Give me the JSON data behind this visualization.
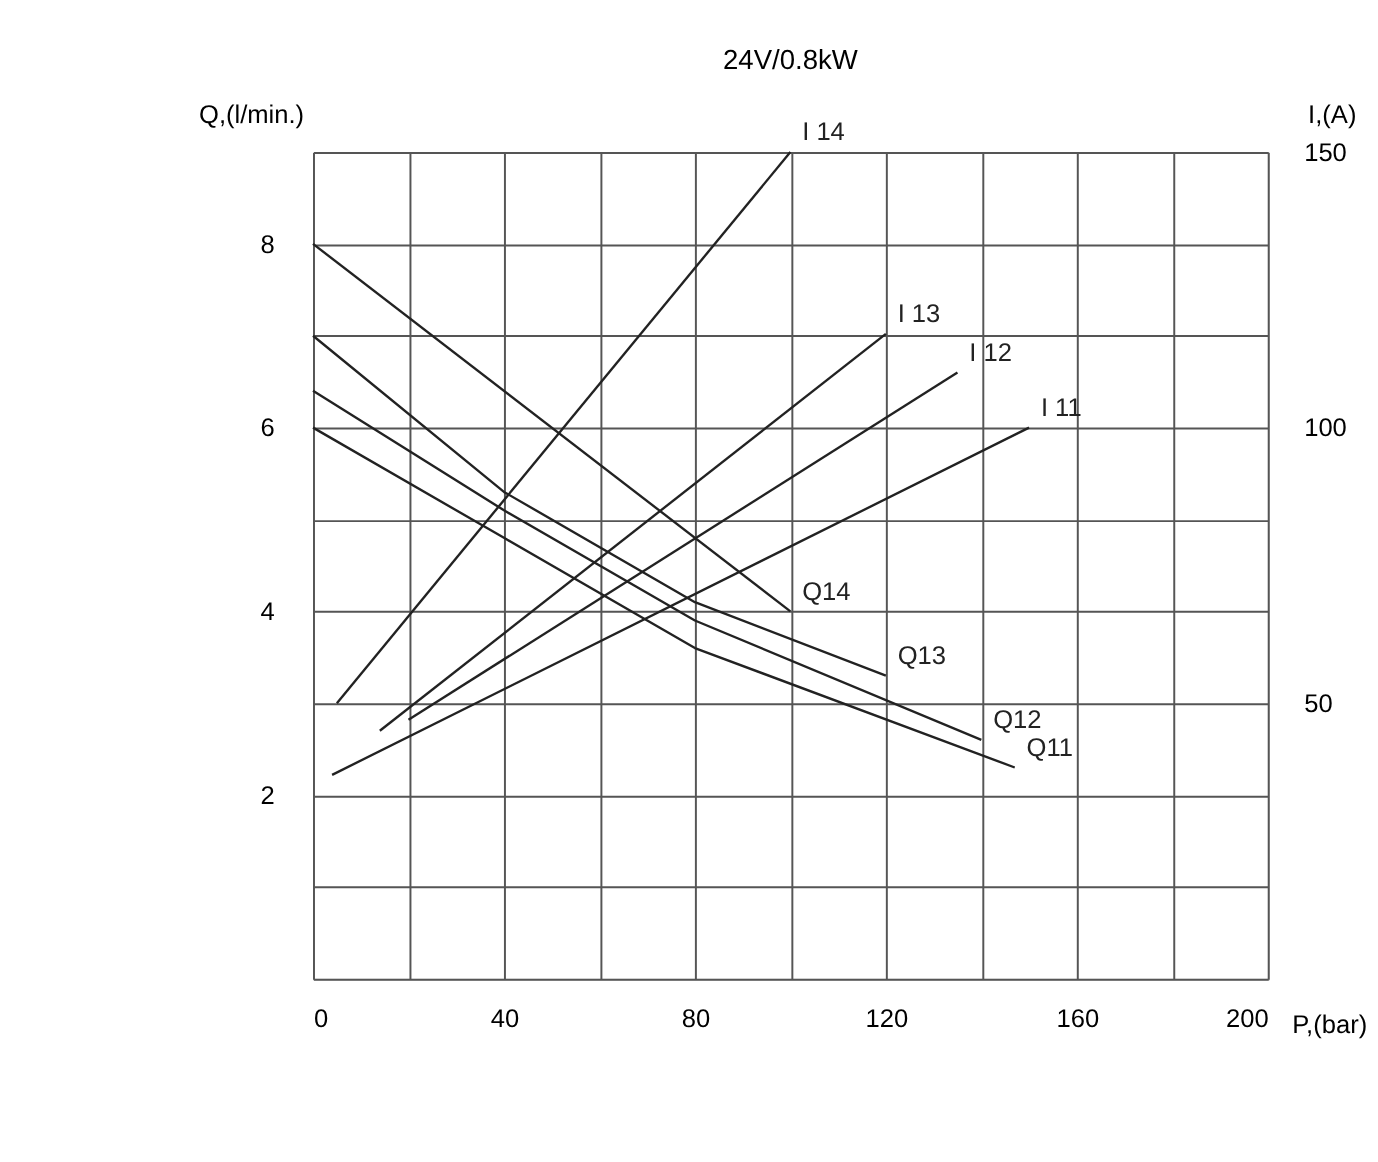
{
  "chart_data": {
    "type": "line",
    "title": "24V/0.8kW",
    "xlabel": "P,(bar)",
    "ylabel": "Q,(l/min.)",
    "y2label": "I,(A)",
    "xlim": [
      0,
      200
    ],
    "xticks": [
      0,
      {
        "value": 20,
        "label": null
      },
      40,
      {
        "value": 60,
        "label": null
      },
      80,
      {
        "value": 100,
        "label": null
      },
      120,
      {
        "value": 140,
        "label": null
      },
      160,
      {
        "value": 180,
        "label": null
      },
      200
    ],
    "ylim": [
      0,
      9
    ],
    "yticks": [
      {
        "value": 0,
        "label": null
      },
      {
        "value": 1,
        "label": null
      },
      2,
      {
        "value": 3,
        "label": null
      },
      4,
      {
        "value": 5,
        "label": null
      },
      6,
      {
        "value": 7,
        "label": null
      },
      8,
      {
        "value": 9,
        "label": null
      }
    ],
    "y2lim": [
      0,
      150
    ],
    "y2ticks": [
      50,
      100,
      150
    ],
    "grid": true,
    "legend": false,
    "marker": "none",
    "line_style": "solid",
    "series": [
      {
        "name": "I 14",
        "axis": "y2",
        "color": "#222222",
        "x": [
          5,
          100
        ],
        "values": [
          50,
          150
        ]
      },
      {
        "name": "I 13",
        "axis": "y2",
        "color": "#222222",
        "x": [
          14,
          120
        ],
        "values": [
          45,
          117
        ]
      },
      {
        "name": "I 12",
        "axis": "y2",
        "color": "#222222",
        "x": [
          20,
          135
        ],
        "values": [
          47,
          110
        ]
      },
      {
        "name": "I 11",
        "axis": "y2",
        "color": "#222222",
        "x": [
          4,
          150
        ],
        "values": [
          37,
          100
        ]
      },
      {
        "name": "Q14",
        "axis": "y",
        "color": "#222222",
        "x": [
          0,
          100
        ],
        "values": [
          8,
          4
        ]
      },
      {
        "name": "Q13",
        "axis": "y",
        "color": "#222222",
        "x": [
          0,
          40,
          80,
          120
        ],
        "values": [
          7,
          5.3,
          4.1,
          3.3
        ]
      },
      {
        "name": "Q12",
        "axis": "y",
        "color": "#222222",
        "x": [
          0,
          40,
          80,
          140
        ],
        "values": [
          6.4,
          5.1,
          3.9,
          2.6
        ]
      },
      {
        "name": "Q11",
        "axis": "y",
        "color": "#222222",
        "x": [
          0,
          40,
          80,
          147
        ],
        "values": [
          6,
          4.8,
          3.6,
          2.3
        ]
      }
    ]
  }
}
